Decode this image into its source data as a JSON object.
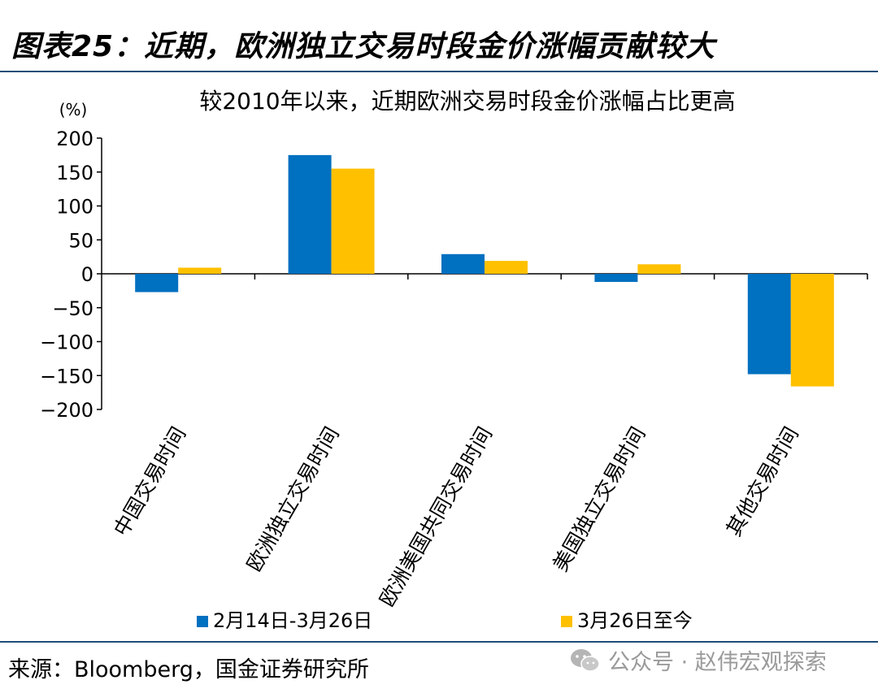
{
  "figure_title": "图表25：近期，欧洲独立交易时段金价涨幅贡献较大",
  "source": "来源：Bloomberg，国金证券研究所",
  "watermark": "公众号 · 赵伟宏观探索",
  "colors": {
    "series1": "#0070c0",
    "series2": "#ffc000",
    "rule": "#1f4e79"
  },
  "chart_data": {
    "type": "bar",
    "title": "较2010年以来，近期欧洲交易时段金价涨幅占比更高",
    "ylabel": "(%)",
    "xlabel": "",
    "ylim": [
      -200,
      200
    ],
    "yticks": [
      200,
      150,
      100,
      50,
      0,
      -50,
      -100,
      -150,
      -200
    ],
    "ytick_labels": [
      "200",
      "150",
      "100",
      "50",
      "0",
      "−50",
      "−100",
      "−150",
      "−200"
    ],
    "categories": [
      "中国交易时间",
      "欧洲独立交易时间",
      "欧洲美国共同交易时间",
      "美国独立交易时间",
      "其他交易时间"
    ],
    "series": [
      {
        "name": "2月14日-3月26日",
        "values": [
          -27,
          175,
          29,
          -12,
          -148
        ]
      },
      {
        "name": "3月26日至今",
        "values": [
          9,
          155,
          19,
          14,
          -166
        ]
      }
    ],
    "legend_position": "bottom",
    "grid": false
  }
}
